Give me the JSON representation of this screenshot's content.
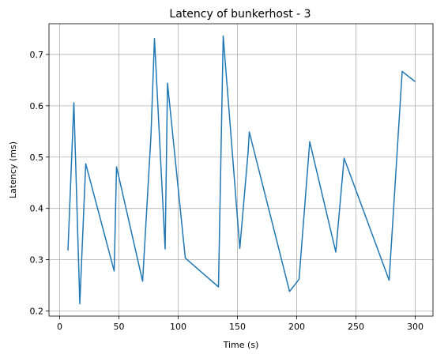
{
  "chart_data": {
    "type": "line",
    "title": "Latency of bunkerhost - 3",
    "xlabel": "Time (s)",
    "ylabel": "Latency (ms)",
    "xlim": [
      -9,
      315
    ],
    "ylim": [
      0.19,
      0.76
    ],
    "xticks": [
      0,
      50,
      100,
      150,
      200,
      250,
      300
    ],
    "yticks": [
      0.2,
      0.3,
      0.4,
      0.5,
      0.6,
      0.7
    ],
    "xtick_labels": [
      "0",
      "50",
      "100",
      "150",
      "200",
      "250",
      "300"
    ],
    "ytick_labels": [
      "0.2",
      "0.3",
      "0.4",
      "0.5",
      "0.6",
      "0.7"
    ],
    "grid": true,
    "series_color": "#1f77b4",
    "x": [
      7,
      12,
      17,
      22,
      46,
      48,
      70,
      77,
      80,
      89,
      91,
      106,
      134,
      138,
      152,
      159,
      160,
      194,
      202,
      211,
      233,
      240,
      278,
      289,
      300
    ],
    "y": [
      0.318,
      0.606,
      0.214,
      0.487,
      0.278,
      0.481,
      0.258,
      0.54,
      0.731,
      0.321,
      0.644,
      0.303,
      0.247,
      0.736,
      0.322,
      0.51,
      0.549,
      0.238,
      0.262,
      0.53,
      0.315,
      0.498,
      0.26,
      0.667,
      0.647
    ]
  }
}
